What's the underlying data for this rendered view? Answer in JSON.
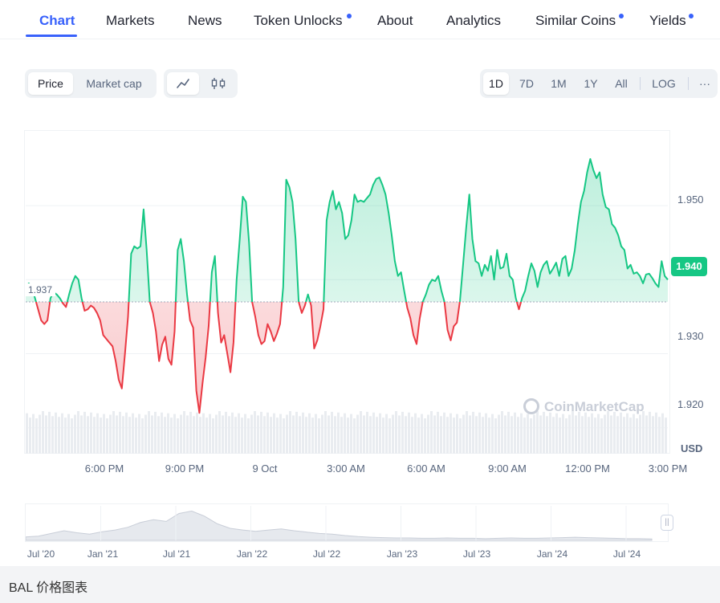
{
  "tabs": [
    {
      "label": "Chart",
      "active": true,
      "dot": false
    },
    {
      "label": "Markets",
      "active": false,
      "dot": false
    },
    {
      "label": "News",
      "active": false,
      "dot": false
    },
    {
      "label": "Token Unlocks",
      "active": false,
      "dot": true
    },
    {
      "label": "About",
      "active": false,
      "dot": false
    },
    {
      "label": "Analytics",
      "active": false,
      "dot": false
    },
    {
      "label": "Similar Coins",
      "active": false,
      "dot": true
    },
    {
      "label": "Yields",
      "active": false,
      "dot": true
    }
  ],
  "controls": {
    "metric": [
      "Price",
      "Market cap"
    ],
    "metric_selected": "Price",
    "chart_types": [
      "line-chart-icon",
      "candlestick-icon"
    ],
    "ranges": [
      "1D",
      "7D",
      "1M",
      "1Y",
      "All"
    ],
    "range_selected": "1D",
    "log_label": "LOG",
    "more_label": "···"
  },
  "colors": {
    "up": "#16c784",
    "down": "#ea3943",
    "accent": "#3861fb"
  },
  "chart_data": {
    "type": "line",
    "title": "",
    "xlabel": "",
    "ylabel": "USD",
    "currency_label": "USD",
    "ylim": [
      1.9165,
      1.9602
    ],
    "yticks": [
      "1.950",
      "1.940",
      "1.930",
      "1.920"
    ],
    "xticks": [
      "6:00 PM",
      "9:00 PM",
      "9 Oct",
      "3:00 AM",
      "6:00 AM",
      "9:00 AM",
      "12:00 PM",
      "3:00 PM"
    ],
    "baseline": 1.937,
    "baseline_label": "1.937",
    "current_price": "1.940",
    "watermark": "CoinMarketCap",
    "series": [
      {
        "values": [
          1.939,
          1.9395,
          1.939,
          1.9375,
          1.936,
          1.9345,
          1.934,
          1.9345,
          1.9375,
          1.9383,
          1.938,
          1.9375,
          1.9368,
          1.9363,
          1.938,
          1.9395,
          1.9405,
          1.94,
          1.9375,
          1.9358,
          1.936,
          1.9365,
          1.9362,
          1.9355,
          1.9345,
          1.9325,
          1.932,
          1.9315,
          1.931,
          1.929,
          1.9265,
          1.9253,
          1.93,
          1.935,
          1.9435,
          1.9445,
          1.9442,
          1.9445,
          1.9495,
          1.944,
          1.937,
          1.9355,
          1.933,
          1.929,
          1.9312,
          1.9323,
          1.9293,
          1.9285,
          1.933,
          1.944,
          1.9455,
          1.9425,
          1.938,
          1.9345,
          1.9335,
          1.925,
          1.922,
          1.926,
          1.9295,
          1.9338,
          1.941,
          1.9432,
          1.9355,
          1.9315,
          1.9325,
          1.93,
          1.9275,
          1.9315,
          1.94,
          1.9455,
          1.9512,
          1.9505,
          1.945,
          1.937,
          1.935,
          1.9325,
          1.9313,
          1.9317,
          1.934,
          1.933,
          1.9317,
          1.9327,
          1.934,
          1.939,
          1.9535,
          1.9525,
          1.9505,
          1.9455,
          1.937,
          1.9355,
          1.9365,
          1.938,
          1.9365,
          1.9307,
          1.9318,
          1.9337,
          1.936,
          1.948,
          1.9505,
          1.952,
          1.9495,
          1.9505,
          1.949,
          1.9455,
          1.946,
          1.948,
          1.9515,
          1.9505,
          1.9507,
          1.9505,
          1.951,
          1.9515,
          1.9528,
          1.9536,
          1.9538,
          1.9528,
          1.9515,
          1.949,
          1.946,
          1.9425,
          1.9405,
          1.941,
          1.9385,
          1.9362,
          1.9348,
          1.9325,
          1.9313,
          1.9347,
          1.937,
          1.938,
          1.9393,
          1.94,
          1.9398,
          1.9405,
          1.9385,
          1.937,
          1.9332,
          1.9318,
          1.9337,
          1.9342,
          1.9372,
          1.942,
          1.947,
          1.9515,
          1.9455,
          1.9425,
          1.9422,
          1.9405,
          1.942,
          1.9412,
          1.9432,
          1.94,
          1.944,
          1.9415,
          1.9417,
          1.9435,
          1.9405,
          1.94,
          1.9375,
          1.936,
          1.9375,
          1.9385,
          1.9405,
          1.9422,
          1.9412,
          1.939,
          1.941,
          1.942,
          1.9425,
          1.9408,
          1.9415,
          1.9423,
          1.9405,
          1.9428,
          1.9432,
          1.9405,
          1.9415,
          1.944,
          1.9475,
          1.9505,
          1.952,
          1.9545,
          1.9563,
          1.9548,
          1.9537,
          1.9545,
          1.9515,
          1.9498,
          1.9495,
          1.9475,
          1.947,
          1.946,
          1.9445,
          1.944,
          1.9415,
          1.942,
          1.9408,
          1.941,
          1.9405,
          1.9395,
          1.9407,
          1.9408,
          1.9402,
          1.9395,
          1.939,
          1.9425,
          1.9405,
          1.94
        ]
      }
    ]
  },
  "navigator": {
    "labels": [
      "Jul '20",
      "Jan '21",
      "Jul '21",
      "Jan '22",
      "Jul '22",
      "Jan '23",
      "Jul '23",
      "Jan '24",
      "Jul '24"
    ],
    "history": [
      0.1,
      0.12,
      0.2,
      0.28,
      0.22,
      0.18,
      0.25,
      0.3,
      0.38,
      0.52,
      0.6,
      0.55,
      0.78,
      0.85,
      0.7,
      0.48,
      0.35,
      0.3,
      0.26,
      0.3,
      0.33,
      0.28,
      0.24,
      0.2,
      0.18,
      0.14,
      0.11,
      0.09,
      0.08,
      0.07,
      0.07,
      0.06,
      0.06,
      0.07,
      0.06,
      0.06,
      0.05,
      0.06,
      0.07,
      0.06,
      0.06,
      0.07,
      0.08,
      0.09,
      0.08,
      0.07,
      0.06,
      0.05,
      0.05,
      0.04
    ]
  },
  "caption": "BAL 价格图表"
}
